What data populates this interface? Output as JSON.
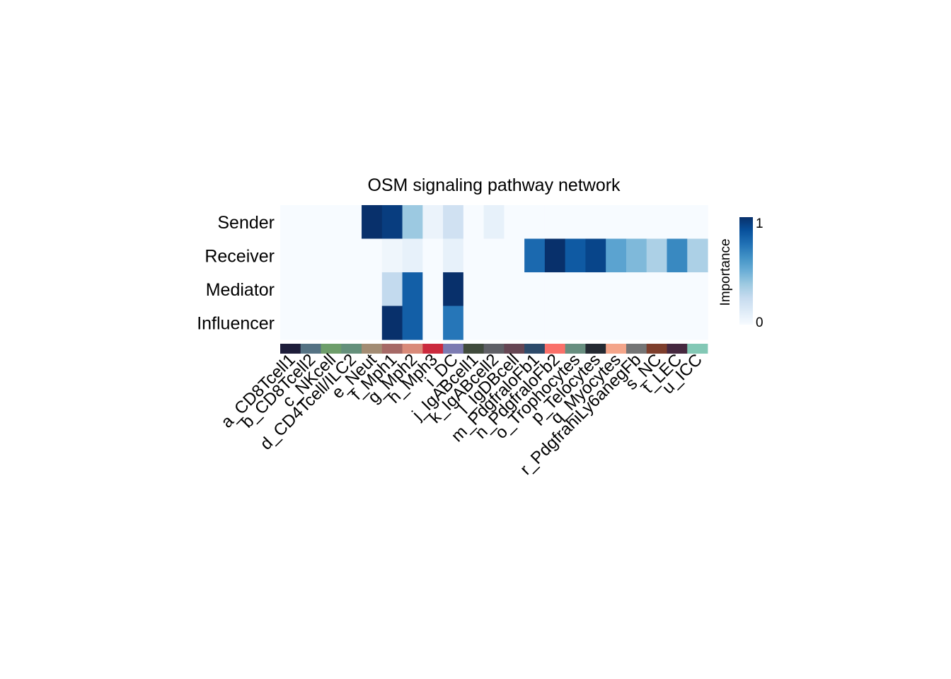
{
  "chart_data": {
    "type": "heatmap",
    "title": "OSM signaling pathway network",
    "rows": [
      "Sender",
      "Receiver",
      "Mediator",
      "Influencer"
    ],
    "columns": [
      "a_CD8Tcell1",
      "b_CD8Tcell2",
      "c_NKcell",
      "d_CD4Tcell/ILC2",
      "e_Neut",
      "f_Mph1",
      "g_Mph2",
      "h_Mph3",
      "i_DC",
      "j_IgABcell1",
      "k_IgABcell2",
      "l_IgDBcell",
      "m_PdgfraloFb1",
      "n_PdgfraloFb2",
      "o_Trophocytes",
      "p_Telocytes",
      "q_Myocytes",
      "r_PdgfrahiLy6anegFb",
      "s_NC",
      "t_LEC",
      "u_ICC"
    ],
    "column_colors": [
      "#1E1D3A",
      "#557283",
      "#6E9E6A",
      "#65907B",
      "#A38C73",
      "#A66966",
      "#D98A79",
      "#CB2A3D",
      "#7C7BB2",
      "#414B3C",
      "#606066",
      "#664653",
      "#2E4B6A",
      "#FA7069",
      "#688E7F",
      "#252A32",
      "#F4A58A",
      "#757575",
      "#7E3E2C",
      "#46283F",
      "#83C8B5"
    ],
    "values": [
      [
        0,
        0,
        0,
        0,
        1.0,
        0.95,
        0.38,
        0.06,
        0.2,
        0,
        0.08,
        0,
        0,
        0,
        0,
        0,
        0,
        0,
        0,
        0,
        0
      ],
      [
        0,
        0,
        0,
        0,
        0,
        0.04,
        0.08,
        0,
        0.08,
        0,
        0,
        0,
        0.78,
        1.0,
        0.84,
        0.92,
        0.55,
        0.45,
        0.33,
        0.66,
        0.33
      ],
      [
        0,
        0,
        0,
        0,
        0,
        0.26,
        0.82,
        0,
        1.0,
        0,
        0,
        0,
        0,
        0,
        0,
        0,
        0,
        0,
        0,
        0,
        0
      ],
      [
        0,
        0,
        0,
        0,
        0,
        1.0,
        0.82,
        0,
        0.73,
        0,
        0,
        0,
        0,
        0,
        0,
        0,
        0,
        0,
        0,
        0,
        0
      ]
    ],
    "colorscale": [
      "#F7FBFF",
      "#DEEBF7",
      "#C6DBEF",
      "#9ECAE1",
      "#6BAED6",
      "#4292C6",
      "#2171B5",
      "#08519C",
      "#08306B"
    ],
    "colorbar": {
      "label": "Importance",
      "ticks": [
        "0",
        "1"
      ],
      "range": [
        0,
        1
      ]
    }
  }
}
